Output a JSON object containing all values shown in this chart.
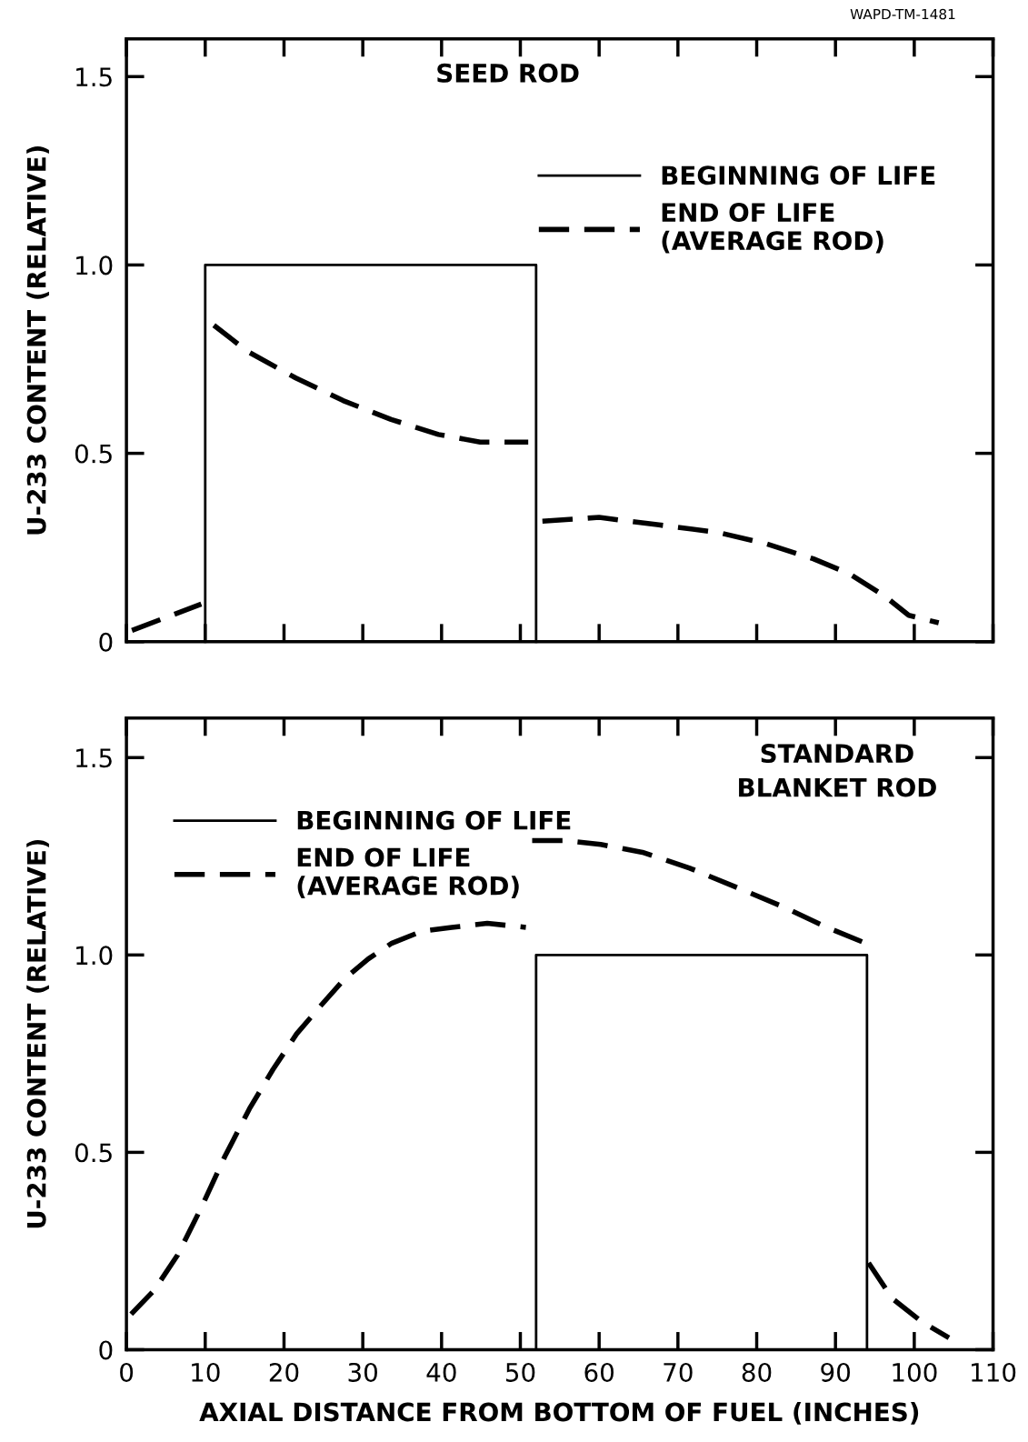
{
  "chart_data": [
    {
      "type": "line",
      "title": "SEED ROD",
      "ylabel": "U-233 CONTENT (RELATIVE)",
      "annotations": [
        "WAPD-TM-1481"
      ],
      "xlim": [
        0,
        110
      ],
      "xticks": [
        0,
        10,
        20,
        30,
        40,
        50,
        60,
        70,
        80,
        90,
        100,
        110
      ],
      "ylim": [
        0,
        1.6
      ],
      "yticks": [
        0,
        0.5,
        {
          "value": 1,
          "label": "1.0"
        },
        1.5
      ],
      "tick_labels": "y",
      "legend": "top right",
      "grid": false,
      "series": [
        {
          "name": "BEGINNING OF LIFE",
          "color": "#000000",
          "line_style": "solid",
          "x": [
            10,
            10,
            52,
            52
          ],
          "values": [
            0,
            1,
            1,
            0
          ]
        },
        {
          "name": "END OF LIFE\n(AVERAGE ROD)",
          "color": "#000000",
          "line_style": "dashed",
          "x": [
            0.7,
            9.5,
            10,
            11.1,
            15.4,
            21.5,
            27.5,
            33.6,
            39.6,
            44.9,
            51.0,
            52,
            52.8,
            60,
            67.6,
            75.1,
            81.2,
            87.2,
            91.8,
            96.3,
            99.3,
            103.1
          ],
          "values": [
            0.03,
            0.1,
            null,
            0.84,
            0.77,
            0.7,
            0.64,
            0.59,
            0.55,
            0.53,
            0.53,
            null,
            0.32,
            0.33,
            0.31,
            0.29,
            0.26,
            0.22,
            0.18,
            0.12,
            0.07,
            0.05
          ]
        }
      ]
    },
    {
      "type": "line",
      "title": "STANDARD\nBLANKET ROD",
      "ylabel": "U-233 CONTENT (RELATIVE)",
      "xlabel": "AXIAL DISTANCE FROM BOTTOM OF FUEL (INCHES)",
      "xlim": [
        0,
        110
      ],
      "xticks": [
        0,
        10,
        20,
        30,
        40,
        50,
        60,
        70,
        80,
        90,
        100,
        110
      ],
      "ylim": [
        0,
        1.6
      ],
      "yticks": [
        0,
        0.5,
        {
          "value": 1,
          "label": "1.0"
        },
        1.5
      ],
      "legend": "top left",
      "grid": false,
      "series": [
        {
          "name": "BEGINNING OF LIFE",
          "color": "#000000",
          "line_style": "solid",
          "x": [
            52,
            52,
            94,
            94
          ],
          "values": [
            0,
            1,
            1,
            0
          ]
        },
        {
          "name": "END OF LIFE\n(AVERAGE ROD)",
          "color": "#000000",
          "line_style": "dashed",
          "x": [
            0.6,
            3.5,
            6.5,
            9.5,
            12.5,
            15.6,
            18.6,
            21.6,
            24.6,
            27.7,
            30.7,
            33.7,
            37.5,
            41.3,
            45.8,
            50.7,
            51,
            51.5,
            55.6,
            60.2,
            65.5,
            71.5,
            77.6,
            83.6,
            88.9,
            93.8,
            94,
            94.2,
            97.2,
            101,
            104.4
          ],
          "values": [
            0.09,
            0.15,
            0.24,
            0.36,
            0.49,
            0.61,
            0.71,
            0.8,
            0.87,
            0.94,
            0.99,
            1.03,
            1.06,
            1.07,
            1.08,
            1.07,
            null,
            1.29,
            1.29,
            1.28,
            1.26,
            1.22,
            1.17,
            1.12,
            1.07,
            1.03,
            null,
            0.22,
            0.13,
            0.07,
            0.03
          ]
        }
      ]
    }
  ]
}
